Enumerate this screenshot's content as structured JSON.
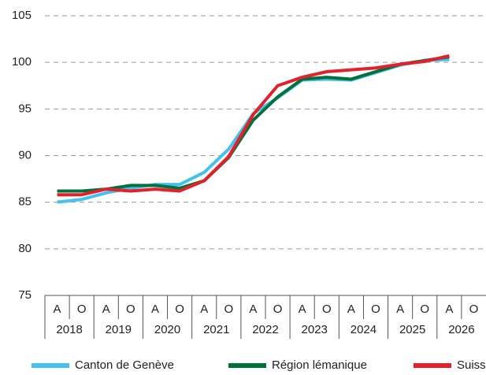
{
  "chart_data": {
    "type": "line",
    "categories": [
      "A",
      "O",
      "A",
      "O",
      "A",
      "O",
      "A",
      "O",
      "A",
      "O",
      "A",
      "O",
      "A",
      "O",
      "A",
      "O",
      "A",
      "O"
    ],
    "year_groups": [
      "2018",
      "2019",
      "2020",
      "2021",
      "2022",
      "2023",
      "2024",
      "2025",
      "2026"
    ],
    "ylim": [
      75,
      105
    ],
    "yticks": [
      75,
      80,
      85,
      90,
      95,
      100,
      105
    ],
    "grid": true,
    "legend": "bottom",
    "series": [
      {
        "name": "Canton de Genève",
        "color": "#45c1ef",
        "values": [
          85.0,
          85.3,
          86.0,
          86.5,
          86.9,
          86.9,
          88.2,
          90.7,
          94.5,
          96.2,
          98.1,
          98.2,
          98.1,
          98.9,
          99.7,
          100.2,
          100.3,
          null
        ]
      },
      {
        "name": "Région lémanique",
        "color": "#00703c",
        "values": [
          86.2,
          86.2,
          86.4,
          86.8,
          86.8,
          86.5,
          87.3,
          89.8,
          93.8,
          96.3,
          98.2,
          98.4,
          98.2,
          99.0,
          99.8,
          100.2,
          100.6,
          null
        ]
      },
      {
        "name": "Suisse",
        "color": "#e3212d",
        "values": [
          85.8,
          85.8,
          86.4,
          86.2,
          86.4,
          86.2,
          87.3,
          89.9,
          94.4,
          97.5,
          98.4,
          99.0,
          99.2,
          99.4,
          99.8,
          100.1,
          100.7,
          null
        ]
      }
    ]
  }
}
